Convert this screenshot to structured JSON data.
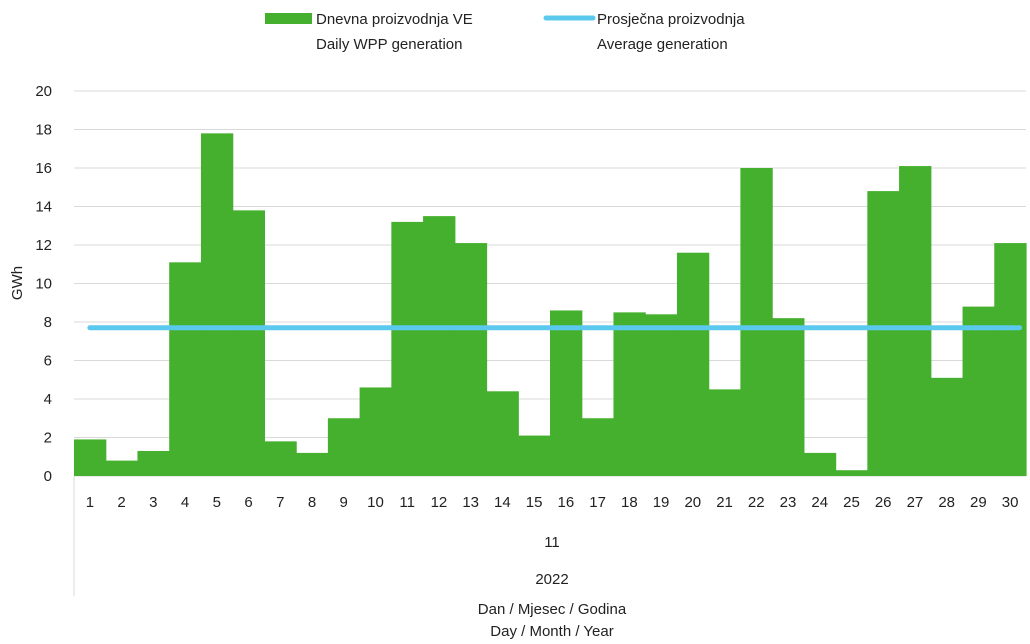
{
  "chart_data": {
    "type": "bar",
    "categories": [
      "1",
      "2",
      "3",
      "4",
      "5",
      "6",
      "7",
      "8",
      "9",
      "10",
      "11",
      "12",
      "13",
      "14",
      "15",
      "16",
      "17",
      "18",
      "19",
      "20",
      "21",
      "22",
      "23",
      "24",
      "25",
      "26",
      "27",
      "28",
      "29",
      "30"
    ],
    "series": [
      {
        "name_line1": "Dnevna proizvodnja VE",
        "name_line2": "Daily WPP generation",
        "type": "bar",
        "color": "#44b02d",
        "values": [
          1.9,
          0.8,
          1.3,
          11.1,
          17.8,
          13.8,
          1.8,
          1.2,
          3.0,
          4.6,
          13.2,
          13.5,
          12.1,
          4.4,
          2.1,
          8.6,
          3.0,
          8.5,
          8.4,
          11.6,
          4.5,
          16.0,
          8.2,
          1.2,
          0.3,
          14.8,
          16.1,
          5.1,
          8.8,
          12.1
        ]
      },
      {
        "name_line1": "Prosječna proizvodnja",
        "name_line2": "Average generation",
        "type": "line",
        "color": "#5bc8ee",
        "value": 7.7
      }
    ],
    "ylabel": "GWh",
    "ylim": [
      0,
      20
    ],
    "yticks": [
      0,
      2,
      4,
      6,
      8,
      10,
      12,
      14,
      16,
      18,
      20
    ],
    "month_label": "11",
    "year_label": "2022",
    "xlabel_line1": "Dan / Mjesec / Godina",
    "xlabel_line2": "Day / Month / Year",
    "grid": true,
    "legend_position": "top"
  }
}
